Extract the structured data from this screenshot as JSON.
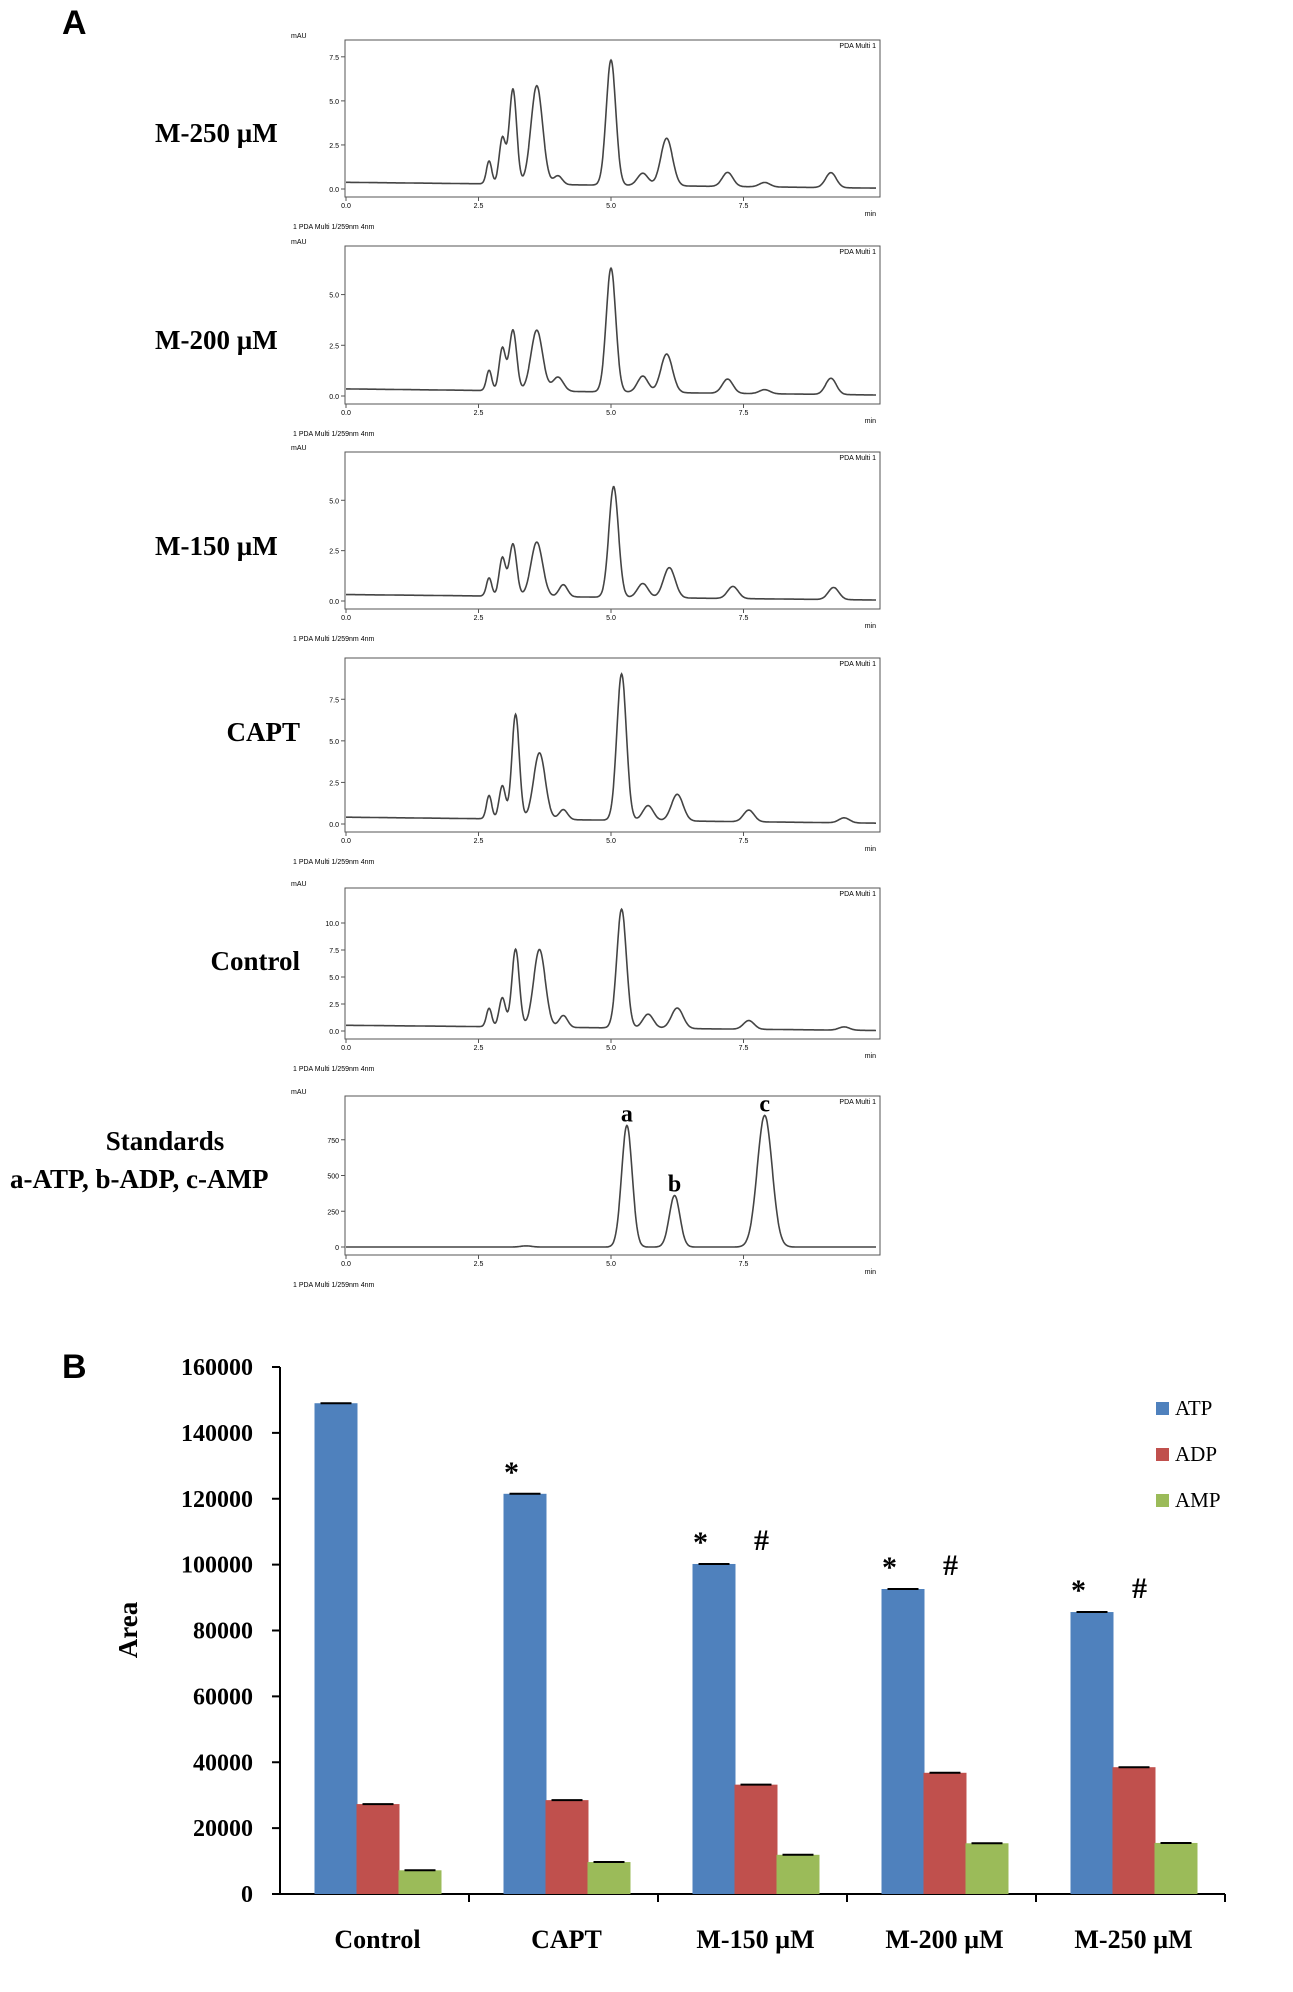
{
  "panel_a_label": "A",
  "panel_b_label": "B",
  "chart_data": [
    {
      "type": "line",
      "x_axis_unit": "min",
      "y_axis_unit": "mAU",
      "detector_tag": "PDA Multi 1",
      "footer_note": "1 PDA Multi 1/259nm 4nm",
      "x_ticks": [
        "0.0",
        "2.5",
        "5.0",
        "7.5"
      ],
      "xlim": [
        0,
        10
      ],
      "rows": [
        {
          "label": "M-250 µM",
          "y_ticks": [
            "0.0",
            "2.5",
            "5.0",
            "7.5"
          ],
          "ymax": 8,
          "peaks": [
            [
              2.7,
              1.3,
              0.05
            ],
            [
              2.95,
              2.6,
              0.06
            ],
            [
              3.15,
              5.4,
              0.07
            ],
            [
              3.6,
              5.6,
              0.11
            ],
            [
              4.0,
              0.5,
              0.08
            ],
            [
              5.0,
              7.1,
              0.09
            ],
            [
              5.6,
              0.7,
              0.1
            ],
            [
              6.05,
              2.7,
              0.11
            ],
            [
              7.2,
              0.8,
              0.1
            ],
            [
              7.9,
              0.25,
              0.1
            ],
            [
              9.15,
              0.85,
              0.1
            ]
          ]
        },
        {
          "label": "M-200 µM",
          "y_ticks": [
            "0.0",
            "2.5",
            "5.0"
          ],
          "ymax": 7,
          "peaks": [
            [
              2.7,
              1.0,
              0.05
            ],
            [
              2.95,
              2.1,
              0.06
            ],
            [
              3.15,
              3.0,
              0.07
            ],
            [
              3.6,
              3.0,
              0.11
            ],
            [
              4.0,
              0.7,
              0.1
            ],
            [
              5.0,
              6.1,
              0.09
            ],
            [
              5.6,
              0.8,
              0.1
            ],
            [
              6.05,
              1.9,
              0.11
            ],
            [
              7.2,
              0.7,
              0.1
            ],
            [
              7.9,
              0.2,
              0.1
            ],
            [
              9.15,
              0.8,
              0.1
            ]
          ]
        },
        {
          "label": "M-150 µM",
          "y_ticks": [
            "0.0",
            "2.5",
            "5.0"
          ],
          "ymax": 7,
          "peaks": [
            [
              2.7,
              0.9,
              0.05
            ],
            [
              2.95,
              1.9,
              0.06
            ],
            [
              3.15,
              2.6,
              0.07
            ],
            [
              3.6,
              2.7,
              0.11
            ],
            [
              4.1,
              0.6,
              0.08
            ],
            [
              5.05,
              5.5,
              0.09
            ],
            [
              5.6,
              0.7,
              0.1
            ],
            [
              6.1,
              1.5,
              0.11
            ],
            [
              7.3,
              0.6,
              0.1
            ],
            [
              9.2,
              0.6,
              0.1
            ]
          ]
        },
        {
          "label": "CAPT",
          "y_ticks": [
            "0.0",
            "2.5",
            "5.0",
            "7.5"
          ],
          "ymax": 9.5,
          "peaks": [
            [
              2.7,
              1.4,
              0.05
            ],
            [
              2.95,
              2.0,
              0.06
            ],
            [
              3.2,
              6.3,
              0.07
            ],
            [
              3.65,
              4.0,
              0.11
            ],
            [
              4.1,
              0.6,
              0.08
            ],
            [
              5.2,
              8.8,
              0.09
            ],
            [
              5.7,
              0.9,
              0.1
            ],
            [
              6.25,
              1.6,
              0.11
            ],
            [
              7.6,
              0.7,
              0.1
            ],
            [
              9.4,
              0.3,
              0.1
            ]
          ]
        },
        {
          "label": "Control",
          "y_ticks": [
            "0.0",
            "2.5",
            "5.0",
            "7.5",
            "10.0"
          ],
          "ymax": 12.5,
          "peaks": [
            [
              2.7,
              1.7,
              0.05
            ],
            [
              2.95,
              2.7,
              0.06
            ],
            [
              3.2,
              7.2,
              0.07
            ],
            [
              3.65,
              7.2,
              0.11
            ],
            [
              4.1,
              1.1,
              0.08
            ],
            [
              5.2,
              11.0,
              0.09
            ],
            [
              5.7,
              1.3,
              0.1
            ],
            [
              6.25,
              1.9,
              0.11
            ],
            [
              7.6,
              0.8,
              0.1
            ],
            [
              9.4,
              0.3,
              0.1
            ]
          ]
        },
        {
          "label": "Standards",
          "sublabel": "a-ATP, b-ADP, c-AMP",
          "y_ticks": [
            "0",
            "250",
            "500",
            "750"
          ],
          "ymax": 1000,
          "peaks": [
            [
              3.4,
              8,
              0.1
            ],
            [
              5.3,
              850,
              0.1
            ],
            [
              6.2,
              360,
              0.1
            ],
            [
              7.9,
              920,
              0.14
            ]
          ],
          "peak_labels": [
            {
              "text": "a",
              "x": 5.3
            },
            {
              "text": "b",
              "x": 6.2
            },
            {
              "text": "c",
              "x": 7.9
            }
          ]
        }
      ]
    },
    {
      "type": "bar",
      "ylabel": "Area",
      "ylim": [
        0,
        160000
      ],
      "y_ticks": [
        0,
        20000,
        40000,
        60000,
        80000,
        100000,
        120000,
        140000,
        160000
      ],
      "categories": [
        "Control",
        "CAPT",
        "M-150 µM",
        "M-200 µM",
        "M-250 µM"
      ],
      "legend_position": "top-right",
      "series": [
        {
          "name": "ATP",
          "color": "#4f81bd",
          "values": [
            149000,
            121500,
            100200,
            92600,
            85600
          ]
        },
        {
          "name": "ADP",
          "color": "#c0504d",
          "values": [
            27300,
            28500,
            33200,
            36800,
            38500
          ]
        },
        {
          "name": "AMP",
          "color": "#9bbb59",
          "values": [
            7200,
            9700,
            11900,
            15400,
            15500
          ]
        }
      ],
      "annotations": [
        {
          "category": "CAPT",
          "marks": [
            "*"
          ]
        },
        {
          "category": "M-150 µM",
          "marks": [
            "*",
            "#"
          ]
        },
        {
          "category": "M-200 µM",
          "marks": [
            "*",
            "#"
          ]
        },
        {
          "category": "M-250 µM",
          "marks": [
            "*",
            "#"
          ]
        }
      ]
    }
  ]
}
